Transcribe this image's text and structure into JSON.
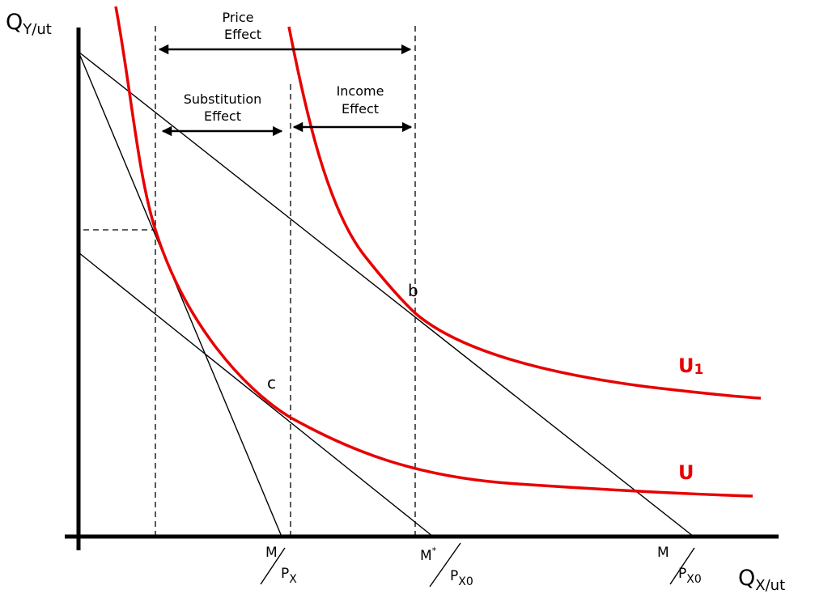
{
  "axes": {
    "y_label_main": "Q",
    "y_label_sub": "Y/ut",
    "x_label_main": "Q",
    "x_label_sub": "X/ut"
  },
  "effects": {
    "price_line1": "Price",
    "price_line2": "Effect",
    "substitution_line1": "Substitution",
    "substitution_line2": "Effect",
    "income_line1": "Income",
    "income_line2": "Effect"
  },
  "points": {
    "b": "b",
    "c": "c"
  },
  "curves": {
    "u1_main": "U",
    "u1_sub": "1",
    "u": "U"
  },
  "ticks": {
    "t1_num": "M",
    "t1_den": "P",
    "t1_den_sub": "X",
    "t2_num": "M",
    "t2_num_sup": "*",
    "t2_den": "P",
    "t2_den_sub": "X0",
    "t3_num": "M",
    "t3_den": "P",
    "t3_den_sub": "X0"
  },
  "colors": {
    "curve": "#e80000",
    "ink": "#000000"
  }
}
